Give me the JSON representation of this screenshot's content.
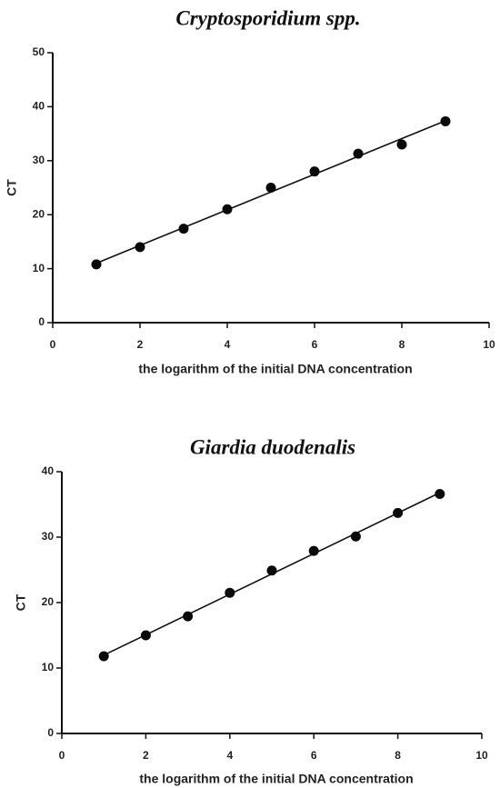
{
  "chart_data": [
    {
      "type": "scatter",
      "title": "Cryptosporidium spp.",
      "xlabel": "the logarithm of the initial DNA concentration",
      "ylabel": "CT",
      "xlim": [
        0,
        10
      ],
      "ylim": [
        0,
        50
      ],
      "xticks": [
        0,
        2,
        4,
        6,
        8,
        10
      ],
      "yticks": [
        0,
        10,
        20,
        30,
        40,
        50
      ],
      "grid": false,
      "fit_line": true,
      "points": [
        {
          "x": 1,
          "y": 10.8
        },
        {
          "x": 2,
          "y": 14.0
        },
        {
          "x": 3,
          "y": 17.4
        },
        {
          "x": 4,
          "y": 21.0
        },
        {
          "x": 5,
          "y": 25.0
        },
        {
          "x": 6,
          "y": 28.0
        },
        {
          "x": 7,
          "y": 31.3
        },
        {
          "x": 8,
          "y": 33.0
        },
        {
          "x": 9,
          "y": 37.3
        }
      ]
    },
    {
      "type": "scatter",
      "title": "Giardia duodenalis",
      "xlabel": "the logarithm of the initial DNA concentration",
      "ylabel": "CT",
      "xlim": [
        0,
        10
      ],
      "ylim": [
        0,
        40
      ],
      "xticks": [
        0,
        2,
        4,
        6,
        8,
        10
      ],
      "yticks": [
        0,
        10,
        20,
        30,
        40
      ],
      "grid": false,
      "fit_line": true,
      "points": [
        {
          "x": 1,
          "y": 11.8
        },
        {
          "x": 2,
          "y": 15.0
        },
        {
          "x": 3,
          "y": 17.9
        },
        {
          "x": 4,
          "y": 21.5
        },
        {
          "x": 5,
          "y": 24.9
        },
        {
          "x": 6,
          "y": 27.9
        },
        {
          "x": 7,
          "y": 30.1
        },
        {
          "x": 8,
          "y": 33.7
        },
        {
          "x": 9,
          "y": 36.6
        }
      ]
    }
  ]
}
